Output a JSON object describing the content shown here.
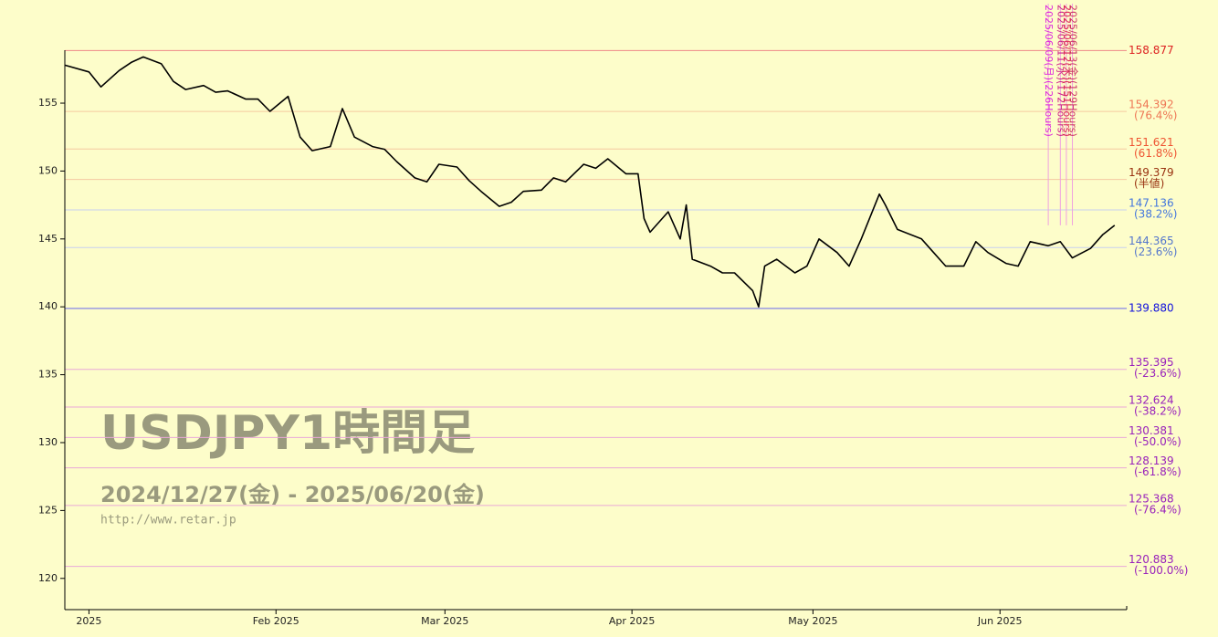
{
  "chart_data": {
    "type": "line",
    "title": "USDJPY1時間足",
    "subtitle": "2024/12/27(金) - 2025/06/20(金)",
    "source": "http://www.retar.jp",
    "color": "#000000",
    "x": [
      "2024-12-28",
      "2025-01-01",
      "2025-01-03",
      "2025-01-06",
      "2025-01-08",
      "2025-01-10",
      "2025-01-13",
      "2025-01-15",
      "2025-01-17",
      "2025-01-20",
      "2025-01-22",
      "2025-01-24",
      "2025-01-27",
      "2025-01-29",
      "2025-01-31",
      "2025-02-03",
      "2025-02-05",
      "2025-02-07",
      "2025-02-10",
      "2025-02-12",
      "2025-02-14",
      "2025-02-17",
      "2025-02-19",
      "2025-02-21",
      "2025-02-24",
      "2025-02-26",
      "2025-02-28",
      "2025-03-03",
      "2025-03-05",
      "2025-03-07",
      "2025-03-10",
      "2025-03-12",
      "2025-03-14",
      "2025-03-17",
      "2025-03-19",
      "2025-03-21",
      "2025-03-24",
      "2025-03-26",
      "2025-03-28",
      "2025-03-31",
      "2025-04-02",
      "2025-04-03",
      "2025-04-04",
      "2025-04-07",
      "2025-04-09",
      "2025-04-10",
      "2025-04-11",
      "2025-04-14",
      "2025-04-16",
      "2025-04-18",
      "2025-04-21",
      "2025-04-22",
      "2025-04-23",
      "2025-04-25",
      "2025-04-28",
      "2025-04-30",
      "2025-05-02",
      "2025-05-05",
      "2025-05-07",
      "2025-05-09",
      "2025-05-12",
      "2025-05-13",
      "2025-05-15",
      "2025-05-19",
      "2025-05-21",
      "2025-05-23",
      "2025-05-26",
      "2025-05-28",
      "2025-05-30",
      "2025-06-02",
      "2025-06-04",
      "2025-06-06",
      "2025-06-09",
      "2025-06-11",
      "2025-06-13",
      "2025-06-16",
      "2025-06-18",
      "2025-06-20"
    ],
    "values": [
      157.8,
      157.3,
      156.2,
      157.4,
      158.0,
      158.4,
      157.9,
      156.6,
      156.0,
      156.3,
      155.8,
      155.9,
      155.3,
      155.3,
      154.4,
      155.5,
      152.5,
      151.5,
      151.8,
      154.6,
      152.5,
      151.8,
      151.6,
      150.7,
      149.5,
      149.2,
      150.5,
      150.3,
      149.3,
      148.5,
      147.4,
      147.7,
      148.5,
      148.6,
      149.5,
      149.2,
      150.5,
      150.2,
      150.9,
      149.8,
      149.8,
      146.5,
      145.5,
      147.0,
      145.0,
      147.5,
      143.5,
      143.0,
      142.5,
      142.5,
      141.2,
      140.0,
      143.0,
      143.5,
      142.5,
      143.0,
      145.0,
      144.0,
      143.0,
      145.0,
      148.3,
      147.5,
      145.7,
      145.0,
      144.0,
      143.0,
      143.0,
      144.8,
      144.0,
      143.2,
      143.0,
      144.8,
      144.5,
      144.8,
      143.6,
      144.3,
      145.3,
      146.0
    ],
    "xlim": [
      "2024-12-28",
      "2025-06-22"
    ],
    "xticks": [
      {
        "value": "2025-01-01",
        "label": "2025"
      },
      {
        "value": "2025-02-01",
        "label": "Feb 2025"
      },
      {
        "value": "2025-03-01",
        "label": "Mar 2025"
      },
      {
        "value": "2025-04-01",
        "label": "Apr 2025"
      },
      {
        "value": "2025-05-01",
        "label": "May 2025"
      },
      {
        "value": "2025-06-01",
        "label": "Jun 2025"
      }
    ],
    "ylim": [
      117.7,
      158.9
    ],
    "yticks": [
      120,
      125,
      130,
      135,
      140,
      145,
      150,
      155
    ],
    "levels": [
      {
        "value": 158.877,
        "color": "#dd2222",
        "line": "#ee8888"
      },
      {
        "value": 154.392,
        "ratio": "(76.4%)",
        "color": "#ee7755",
        "line": "#f5c8a0"
      },
      {
        "value": 151.621,
        "ratio": "(61.8%)",
        "color": "#ee5533",
        "line": "#f5c8a0"
      },
      {
        "value": 149.379,
        "ratio": "(半値)",
        "color": "#993311",
        "line": "#f5c8a0"
      },
      {
        "value": 147.136,
        "ratio": "(38.2%)",
        "color": "#4477dd",
        "line": "#c8d0f0"
      },
      {
        "value": 144.365,
        "ratio": "(23.6%)",
        "color": "#5577cc",
        "line": "#c8d0f0"
      },
      {
        "value": 139.88,
        "label": "139.880",
        "color": "#1111dd",
        "line": "#6666ee"
      },
      {
        "value": 135.395,
        "ratio": "(-23.6%)",
        "color": "#9922bb",
        "line": "#eaa8d8"
      },
      {
        "value": 132.624,
        "ratio": "(-38.2%)",
        "color": "#9922bb",
        "line": "#eaa8d8"
      },
      {
        "value": 130.381,
        "ratio": "(-50.0%)",
        "color": "#9922bb",
        "line": "#eaa8d8"
      },
      {
        "value": 128.139,
        "ratio": "(-61.8%)",
        "color": "#9922bb",
        "line": "#eaa8d8"
      },
      {
        "value": 125.368,
        "ratio": "(-76.4%)",
        "color": "#9922bb",
        "line": "#eaa8d8"
      },
      {
        "value": 120.883,
        "ratio": "(-100.0%)",
        "color": "#9922bb",
        "line": "#eaa8d8"
      }
    ],
    "markers": [
      {
        "x": "2025-06-09",
        "label": "2025/06/09(月)(226Hours)",
        "color": "#dd22dd"
      },
      {
        "x": "2025-06-11",
        "label": "2025/06/11(水)(172Hours)",
        "color": "#cc2288"
      },
      {
        "x": "2025-06-12",
        "label": "2025/06/12(木)(151Hours)",
        "color": "#dd2255"
      },
      {
        "x": "2025-06-13",
        "label": "2025/06/13(金)(129Hours)",
        "color": "#cc3366"
      }
    ]
  }
}
